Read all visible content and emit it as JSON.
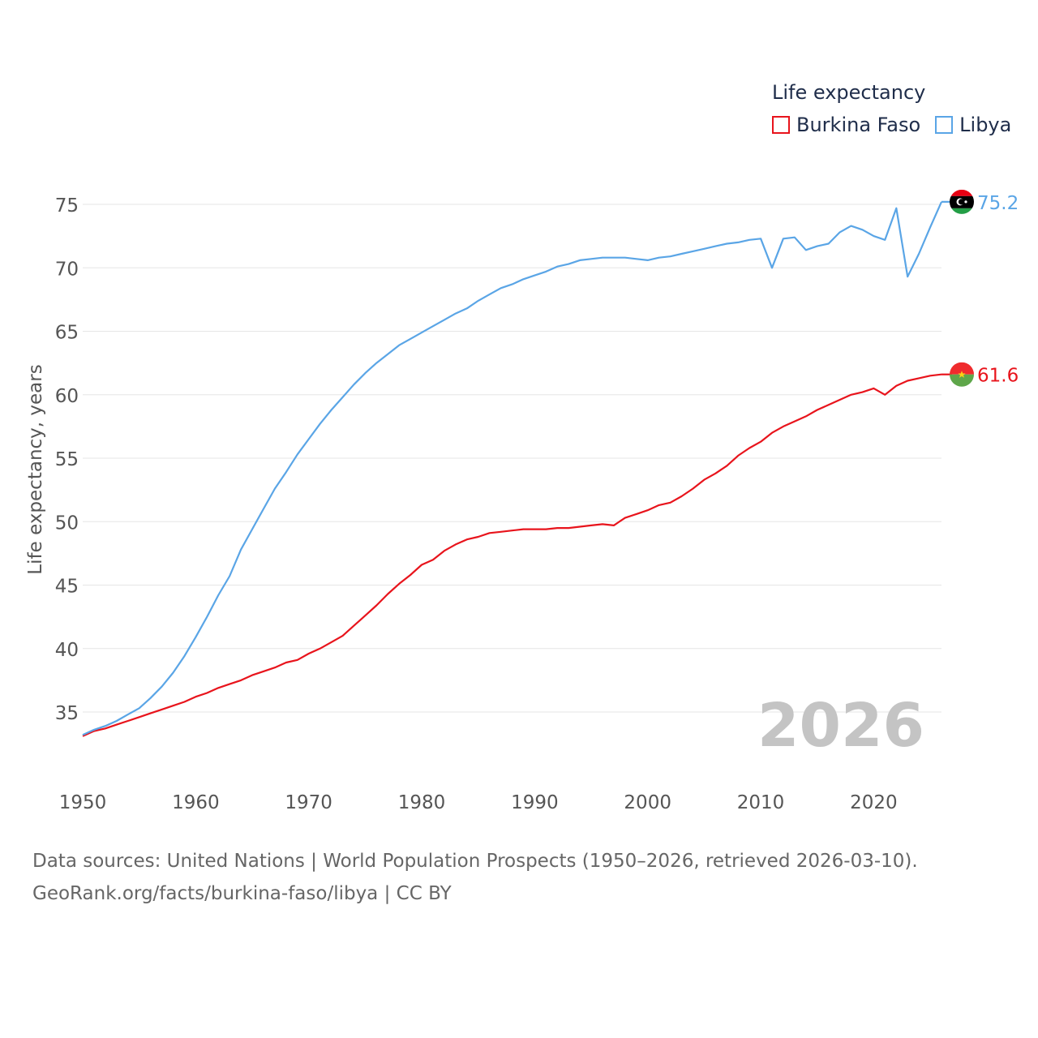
{
  "legend": {
    "title": "Life expectancy",
    "items": [
      {
        "label": "Burkina Faso",
        "color": "#e8141c"
      },
      {
        "label": "Libya",
        "color": "#5aa5e6"
      }
    ]
  },
  "footer": {
    "line1": "Data sources: United Nations | World Population Prospects (1950–2026, retrieved 2026-03-10).",
    "line2": "GeoRank.org/facts/burkina-faso/libya | CC BY"
  },
  "chart_data": {
    "type": "line",
    "title": "Life expectancy",
    "xlabel": "",
    "ylabel": "Life expectancy, years",
    "xlim": [
      1950,
      2026
    ],
    "ylim": [
      31,
      78
    ],
    "year_label": "2026",
    "x_ticks": [
      1950,
      1960,
      1970,
      1980,
      1990,
      2000,
      2010,
      2020
    ],
    "y_ticks": [
      35,
      40,
      45,
      50,
      55,
      60,
      65,
      70,
      75
    ],
    "x": [
      1950,
      1951,
      1952,
      1953,
      1954,
      1955,
      1956,
      1957,
      1958,
      1959,
      1960,
      1961,
      1962,
      1963,
      1964,
      1965,
      1966,
      1967,
      1968,
      1969,
      1970,
      1971,
      1972,
      1973,
      1974,
      1975,
      1976,
      1977,
      1978,
      1979,
      1980,
      1981,
      1982,
      1983,
      1984,
      1985,
      1986,
      1987,
      1988,
      1989,
      1990,
      1991,
      1992,
      1993,
      1994,
      1995,
      1996,
      1997,
      1998,
      1999,
      2000,
      2001,
      2002,
      2003,
      2004,
      2005,
      2006,
      2007,
      2008,
      2009,
      2010,
      2011,
      2012,
      2013,
      2014,
      2015,
      2016,
      2017,
      2018,
      2019,
      2020,
      2021,
      2022,
      2023,
      2024,
      2025,
      2026
    ],
    "series": [
      {
        "name": "Burkina Faso",
        "color": "#e8141c",
        "end_label": "61.6",
        "values": [
          33.1,
          33.5,
          33.7,
          34.0,
          34.3,
          34.6,
          34.9,
          35.2,
          35.5,
          35.8,
          36.2,
          36.5,
          36.9,
          37.2,
          37.5,
          37.9,
          38.2,
          38.5,
          38.9,
          39.1,
          39.6,
          40.0,
          40.5,
          41.0,
          41.8,
          42.6,
          43.4,
          44.3,
          45.1,
          45.8,
          46.6,
          47.0,
          47.7,
          48.2,
          48.6,
          48.8,
          49.1,
          49.2,
          49.3,
          49.4,
          49.4,
          49.4,
          49.5,
          49.5,
          49.6,
          49.7,
          49.8,
          49.7,
          50.3,
          50.6,
          50.9,
          51.3,
          51.5,
          52.0,
          52.6,
          53.3,
          53.8,
          54.4,
          55.2,
          55.8,
          56.3,
          57.0,
          57.5,
          57.9,
          58.3,
          58.8,
          59.2,
          59.6,
          60.0,
          60.2,
          60.5,
          60.0,
          60.7,
          61.1,
          61.3,
          61.5,
          61.6
        ]
      },
      {
        "name": "Libya",
        "color": "#5aa5e6",
        "end_label": "75.2",
        "values": [
          33.2,
          33.6,
          33.9,
          34.3,
          34.8,
          35.3,
          36.1,
          37.0,
          38.1,
          39.4,
          40.9,
          42.5,
          44.2,
          45.7,
          47.8,
          49.4,
          51.0,
          52.6,
          53.9,
          55.3,
          56.5,
          57.7,
          58.8,
          59.8,
          60.8,
          61.7,
          62.5,
          63.2,
          63.9,
          64.4,
          64.9,
          65.4,
          65.9,
          66.4,
          66.8,
          67.4,
          67.9,
          68.4,
          68.7,
          69.1,
          69.4,
          69.7,
          70.1,
          70.3,
          70.6,
          70.7,
          70.8,
          70.8,
          70.8,
          70.7,
          70.6,
          70.8,
          70.9,
          71.1,
          71.3,
          71.5,
          71.7,
          71.9,
          72.0,
          72.2,
          72.3,
          70.0,
          72.3,
          72.4,
          71.4,
          71.7,
          71.9,
          72.8,
          73.3,
          73.0,
          72.5,
          72.2,
          74.7,
          69.3,
          71.1,
          73.2,
          75.2
        ]
      }
    ]
  }
}
